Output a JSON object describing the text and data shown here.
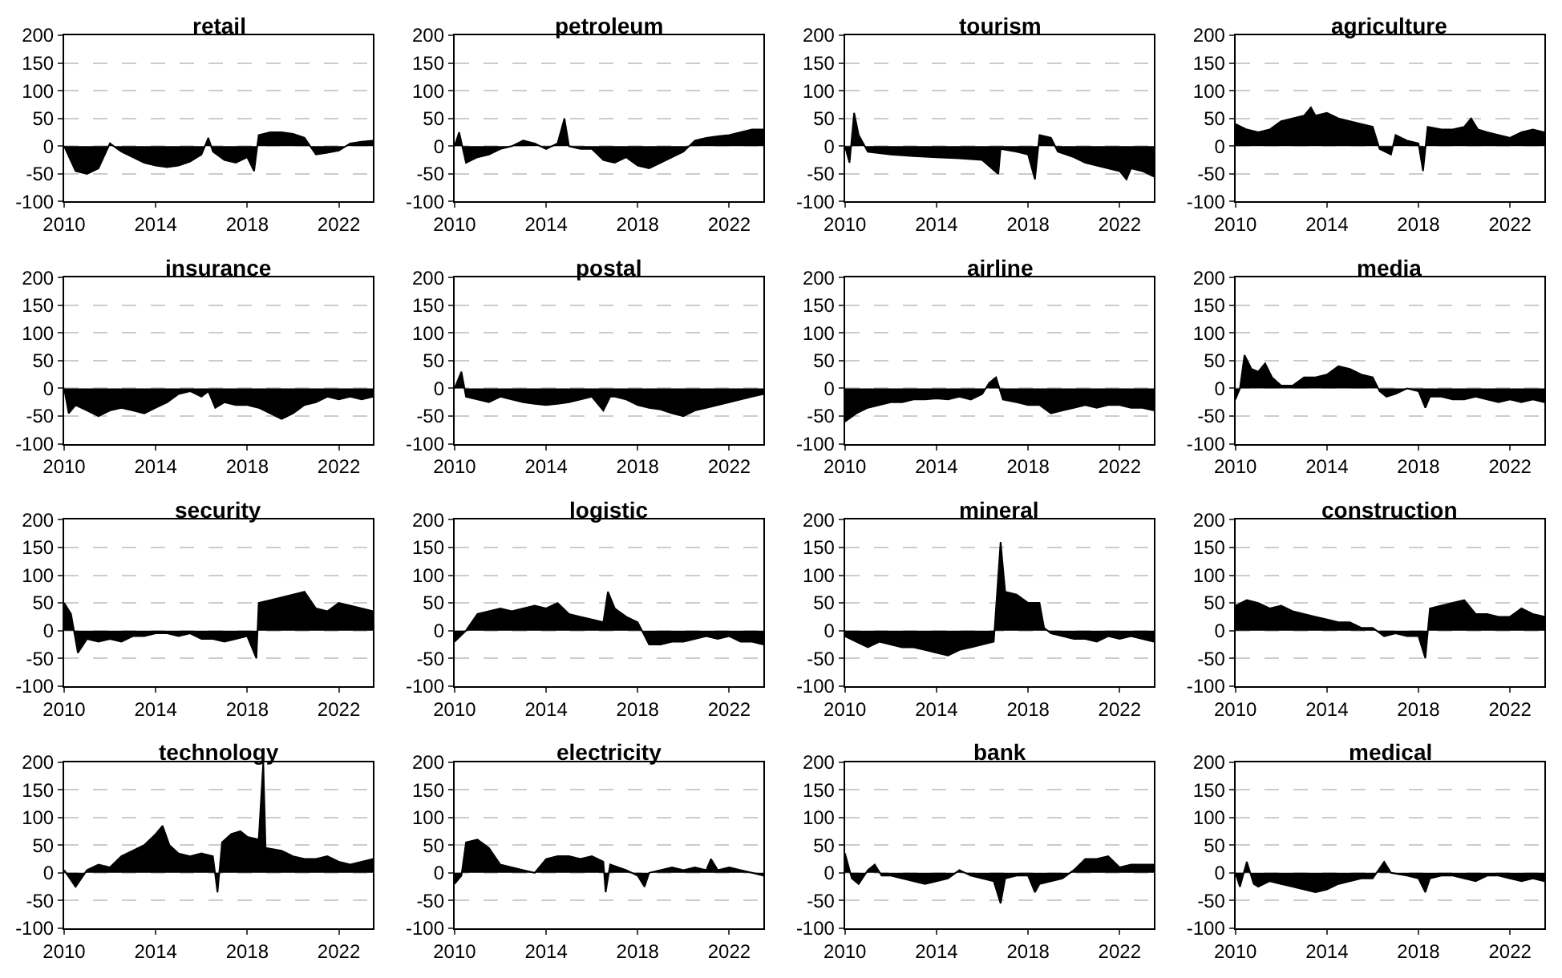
{
  "chart_data": [
    {
      "type": "area",
      "title": "retail",
      "color": "#000000",
      "xlim": [
        2010,
        2023.5
      ],
      "ylim": [
        -100,
        200
      ],
      "xticks": [
        2010,
        2014,
        2018,
        2022
      ],
      "yticks": [
        -100,
        -50,
        0,
        50,
        100,
        150,
        200
      ],
      "grid": "y",
      "x": [
        2010,
        2010.5,
        2011,
        2011.5,
        2012,
        2012.5,
        2013,
        2013.5,
        2014,
        2014.5,
        2015,
        2015.5,
        2016,
        2016.3,
        2016.5,
        2017,
        2017.5,
        2018,
        2018.3,
        2018.5,
        2019,
        2019.5,
        2020,
        2020.5,
        2021,
        2021.5,
        2022,
        2022.5,
        2023,
        2023.5
      ],
      "values": [
        0,
        -45,
        -50,
        -40,
        5,
        -10,
        -20,
        -30,
        -35,
        -38,
        -35,
        -28,
        -15,
        15,
        -10,
        -25,
        -30,
        -20,
        -45,
        20,
        25,
        25,
        22,
        15,
        -15,
        -12,
        -8,
        5,
        8,
        10
      ]
    },
    {
      "type": "area",
      "title": "petroleum",
      "color": "#000000",
      "xlim": [
        2010,
        2023.5
      ],
      "ylim": [
        -100,
        200
      ],
      "xticks": [
        2010,
        2014,
        2018,
        2022
      ],
      "yticks": [
        -100,
        -50,
        0,
        50,
        100,
        150,
        200
      ],
      "grid": "y",
      "x": [
        2010,
        2010.2,
        2010.5,
        2011,
        2011.5,
        2012,
        2012.5,
        2013,
        2013.5,
        2014,
        2014.5,
        2014.8,
        2015,
        2015.5,
        2016,
        2016.5,
        2017,
        2017.5,
        2018,
        2018.5,
        2019,
        2019.5,
        2020,
        2020.5,
        2021,
        2021.5,
        2022,
        2022.5,
        2023,
        2023.5
      ],
      "values": [
        0,
        25,
        -30,
        -20,
        -15,
        -5,
        0,
        10,
        5,
        -5,
        5,
        50,
        0,
        -5,
        -5,
        -25,
        -30,
        -20,
        -35,
        -40,
        -30,
        -20,
        -10,
        10,
        15,
        18,
        20,
        25,
        30,
        30
      ]
    },
    {
      "type": "area",
      "title": "tourism",
      "color": "#000000",
      "xlim": [
        2010,
        2023.5
      ],
      "ylim": [
        -100,
        200
      ],
      "xticks": [
        2010,
        2014,
        2018,
        2022
      ],
      "yticks": [
        -100,
        -50,
        0,
        50,
        100,
        150,
        200
      ],
      "grid": "y",
      "x": [
        2010,
        2010.2,
        2010.4,
        2010.6,
        2011,
        2012,
        2013,
        2014,
        2015,
        2016,
        2016.7,
        2016.8,
        2017.5,
        2018,
        2018.3,
        2018.5,
        2019,
        2019.3,
        2020,
        2020.5,
        2021,
        2021.5,
        2022,
        2022.3,
        2022.5,
        2023,
        2023.5
      ],
      "values": [
        0,
        -30,
        60,
        20,
        -10,
        -15,
        -18,
        -20,
        -22,
        -25,
        -50,
        -5,
        -10,
        -15,
        -60,
        20,
        15,
        -10,
        -20,
        -30,
        -35,
        -40,
        -45,
        -60,
        -40,
        -45,
        -55
      ]
    },
    {
      "type": "area",
      "title": "agriculture",
      "color": "#000000",
      "xlim": [
        2010,
        2023.5
      ],
      "ylim": [
        -100,
        200
      ],
      "xticks": [
        2010,
        2014,
        2018,
        2022
      ],
      "yticks": [
        -100,
        -50,
        0,
        50,
        100,
        150,
        200
      ],
      "grid": "y",
      "x": [
        2010,
        2010.5,
        2011,
        2011.5,
        2012,
        2012.5,
        2013,
        2013.3,
        2013.5,
        2014,
        2014.5,
        2015,
        2015.5,
        2016,
        2016.3,
        2016.8,
        2017,
        2017.5,
        2018,
        2018.2,
        2018.4,
        2019,
        2019.5,
        2020,
        2020.3,
        2020.6,
        2021,
        2021.5,
        2022,
        2022.5,
        2023,
        2023.5
      ],
      "values": [
        40,
        30,
        25,
        30,
        45,
        50,
        55,
        70,
        55,
        60,
        50,
        45,
        40,
        35,
        -5,
        -15,
        20,
        10,
        5,
        -45,
        35,
        30,
        30,
        35,
        50,
        30,
        25,
        20,
        15,
        25,
        30,
        25
      ]
    },
    {
      "type": "area",
      "title": "insurance",
      "color": "#000000",
      "xlim": [
        2010,
        2023.5
      ],
      "ylim": [
        -100,
        200
      ],
      "xticks": [
        2010,
        2014,
        2018,
        2022
      ],
      "yticks": [
        -100,
        -50,
        0,
        50,
        100,
        150,
        200
      ],
      "grid": "y",
      "x": [
        2010,
        2010.2,
        2010.5,
        2011,
        2011.5,
        2012,
        2012.5,
        2013,
        2013.5,
        2014,
        2014.5,
        2015,
        2015.5,
        2016,
        2016.3,
        2016.6,
        2017,
        2017.5,
        2018,
        2018.5,
        2019,
        2019.5,
        2020,
        2020.5,
        2021,
        2021.5,
        2022,
        2022.5,
        2023,
        2023.5
      ],
      "values": [
        0,
        -45,
        -30,
        -40,
        -50,
        -40,
        -35,
        -40,
        -45,
        -35,
        -25,
        -10,
        -5,
        -15,
        -5,
        -35,
        -25,
        -30,
        -30,
        -35,
        -45,
        -55,
        -45,
        -30,
        -25,
        -15,
        -20,
        -15,
        -20,
        -15
      ]
    },
    {
      "type": "area",
      "title": "postal",
      "color": "#000000",
      "xlim": [
        2010,
        2023.5
      ],
      "ylim": [
        -100,
        200
      ],
      "xticks": [
        2010,
        2014,
        2018,
        2022
      ],
      "yticks": [
        -100,
        -50,
        0,
        50,
        100,
        150,
        200
      ],
      "grid": "y",
      "x": [
        2010,
        2010.3,
        2010.5,
        2011,
        2011.5,
        2012,
        2012.5,
        2013,
        2013.5,
        2014,
        2014.5,
        2015,
        2015.5,
        2016,
        2016.5,
        2016.8,
        2017,
        2017.5,
        2018,
        2018.5,
        2019,
        2019.5,
        2020,
        2020.5,
        2021,
        2021.5,
        2022,
        2022.5,
        2023,
        2023.5
      ],
      "values": [
        0,
        30,
        -15,
        -20,
        -25,
        -15,
        -20,
        -25,
        -28,
        -30,
        -28,
        -25,
        -20,
        -15,
        -40,
        -15,
        -15,
        -20,
        -30,
        -35,
        -38,
        -45,
        -50,
        -40,
        -35,
        -30,
        -25,
        -20,
        -15,
        -10
      ]
    },
    {
      "type": "area",
      "title": "airline",
      "color": "#000000",
      "xlim": [
        2010,
        2023.5
      ],
      "ylim": [
        -100,
        200
      ],
      "xticks": [
        2010,
        2014,
        2018,
        2022
      ],
      "yticks": [
        -100,
        -50,
        0,
        50,
        100,
        150,
        200
      ],
      "grid": "y",
      "x": [
        2010,
        2010.5,
        2011,
        2011.5,
        2012,
        2012.5,
        2013,
        2013.5,
        2014,
        2014.5,
        2015,
        2015.5,
        2016,
        2016.3,
        2016.6,
        2016.9,
        2017.5,
        2018,
        2018.5,
        2019,
        2019.5,
        2020,
        2020.5,
        2021,
        2021.5,
        2022,
        2022.5,
        2023,
        2023.5
      ],
      "values": [
        -60,
        -45,
        -35,
        -30,
        -25,
        -25,
        -20,
        -20,
        -18,
        -20,
        -15,
        -20,
        -10,
        10,
        20,
        -20,
        -25,
        -30,
        -30,
        -45,
        -40,
        -35,
        -30,
        -35,
        -30,
        -30,
        -35,
        -35,
        -40
      ]
    },
    {
      "type": "area",
      "title": "media",
      "color": "#000000",
      "xlim": [
        2010,
        2023.5
      ],
      "ylim": [
        -100,
        200
      ],
      "xticks": [
        2010,
        2014,
        2018,
        2022
      ],
      "yticks": [
        -100,
        -50,
        0,
        50,
        100,
        150,
        200
      ],
      "grid": "y",
      "x": [
        2010,
        2010.2,
        2010.4,
        2010.7,
        2011,
        2011.3,
        2011.6,
        2012,
        2012.5,
        2013,
        2013.5,
        2014,
        2014.5,
        2015,
        2015.5,
        2016,
        2016.3,
        2016.6,
        2017,
        2017.5,
        2018,
        2018.3,
        2018.5,
        2019,
        2019.5,
        2020,
        2020.5,
        2021,
        2021.5,
        2022,
        2022.5,
        2023,
        2023.5
      ],
      "values": [
        -20,
        0,
        60,
        35,
        30,
        45,
        20,
        5,
        5,
        20,
        20,
        25,
        40,
        35,
        25,
        20,
        -5,
        -15,
        -10,
        0,
        -5,
        -35,
        -15,
        -15,
        -20,
        -20,
        -15,
        -20,
        -25,
        -20,
        -25,
        -20,
        -25
      ]
    },
    {
      "type": "area",
      "title": "security",
      "color": "#000000",
      "xlim": [
        2010,
        2023.5
      ],
      "ylim": [
        -100,
        200
      ],
      "xticks": [
        2010,
        2014,
        2018,
        2022
      ],
      "yticks": [
        -100,
        -50,
        0,
        50,
        100,
        150,
        200
      ],
      "grid": "y",
      "x": [
        2010,
        2010.3,
        2010.6,
        2011,
        2011.5,
        2012,
        2012.5,
        2013,
        2013.5,
        2014,
        2014.5,
        2015,
        2015.5,
        2016,
        2016.5,
        2017,
        2017.5,
        2018,
        2018.4,
        2018.5,
        2019,
        2019.5,
        2020,
        2020.5,
        2021,
        2021.5,
        2022,
        2022.5,
        2023,
        2023.5
      ],
      "values": [
        50,
        30,
        -40,
        -15,
        -20,
        -15,
        -20,
        -10,
        -10,
        -5,
        -5,
        -10,
        -5,
        -15,
        -15,
        -20,
        -15,
        -10,
        -50,
        50,
        55,
        60,
        65,
        70,
        40,
        35,
        50,
        45,
        40,
        35
      ]
    },
    {
      "type": "area",
      "title": "logistic",
      "color": "#000000",
      "xlim": [
        2010,
        2023.5
      ],
      "ylim": [
        -100,
        200
      ],
      "xticks": [
        2010,
        2014,
        2018,
        2022
      ],
      "yticks": [
        -100,
        -50,
        0,
        50,
        100,
        150,
        200
      ],
      "grid": "y",
      "x": [
        2010,
        2010.5,
        2011,
        2011.5,
        2012,
        2012.5,
        2013,
        2013.5,
        2014,
        2014.5,
        2015,
        2015.5,
        2016,
        2016.5,
        2016.7,
        2017,
        2017.5,
        2018,
        2018.5,
        2019,
        2019.5,
        2020,
        2020.5,
        2021,
        2021.5,
        2022,
        2022.5,
        2023,
        2023.5
      ],
      "values": [
        -20,
        0,
        30,
        35,
        40,
        35,
        40,
        45,
        40,
        50,
        30,
        25,
        20,
        15,
        70,
        40,
        25,
        15,
        -25,
        -25,
        -20,
        -20,
        -15,
        -10,
        -15,
        -10,
        -20,
        -20,
        -25
      ]
    },
    {
      "type": "area",
      "title": "mineral",
      "color": "#000000",
      "xlim": [
        2010,
        2023.5
      ],
      "ylim": [
        -100,
        200
      ],
      "xticks": [
        2010,
        2014,
        2018,
        2022
      ],
      "yticks": [
        -100,
        -50,
        0,
        50,
        100,
        150,
        200
      ],
      "grid": "y",
      "x": [
        2010,
        2010.5,
        2011,
        2011.5,
        2012,
        2012.5,
        2013,
        2013.5,
        2014,
        2014.5,
        2015,
        2015.5,
        2016,
        2016.5,
        2016.8,
        2017,
        2017.5,
        2018,
        2018.5,
        2018.7,
        2019,
        2019.5,
        2020,
        2020.5,
        2021,
        2021.5,
        2022,
        2022.5,
        2023,
        2023.5
      ],
      "values": [
        -10,
        -20,
        -30,
        -20,
        -25,
        -30,
        -30,
        -35,
        -40,
        -45,
        -35,
        -30,
        -25,
        -20,
        160,
        70,
        65,
        50,
        50,
        5,
        -5,
        -10,
        -15,
        -15,
        -20,
        -10,
        -15,
        -10,
        -15,
        -20
      ]
    },
    {
      "type": "area",
      "title": "construction",
      "color": "#000000",
      "xlim": [
        2010,
        2023.5
      ],
      "ylim": [
        -100,
        200
      ],
      "xticks": [
        2010,
        2014,
        2018,
        2022
      ],
      "yticks": [
        -100,
        -50,
        0,
        50,
        100,
        150,
        200
      ],
      "grid": "y",
      "x": [
        2010,
        2010.5,
        2011,
        2011.5,
        2012,
        2012.5,
        2013,
        2013.5,
        2014,
        2014.5,
        2015,
        2015.5,
        2016,
        2016.5,
        2017,
        2017.5,
        2018,
        2018.3,
        2018.5,
        2019,
        2019.5,
        2020,
        2020.5,
        2021,
        2021.5,
        2022,
        2022.5,
        2023,
        2023.5
      ],
      "values": [
        45,
        55,
        50,
        40,
        45,
        35,
        30,
        25,
        20,
        15,
        15,
        5,
        5,
        -10,
        -5,
        -10,
        -10,
        -50,
        40,
        45,
        50,
        55,
        30,
        30,
        25,
        25,
        40,
        30,
        25
      ]
    },
    {
      "type": "area",
      "title": "technology",
      "color": "#000000",
      "xlim": [
        2010,
        2023.5
      ],
      "ylim": [
        -100,
        200
      ],
      "xticks": [
        2010,
        2014,
        2018,
        2022
      ],
      "yticks": [
        -100,
        -50,
        0,
        50,
        100,
        150,
        200
      ],
      "grid": "y",
      "x": [
        2010,
        2010.5,
        2011,
        2011.5,
        2012,
        2012.5,
        2013,
        2013.5,
        2014,
        2014.3,
        2014.6,
        2015,
        2015.5,
        2016,
        2016.5,
        2016.7,
        2016.9,
        2017.3,
        2017.7,
        2018,
        2018.5,
        2018.7,
        2018.8,
        2019.5,
        2020,
        2020.5,
        2021,
        2021.5,
        2022,
        2022.5,
        2023,
        2023.5
      ],
      "values": [
        5,
        -25,
        5,
        15,
        10,
        30,
        40,
        50,
        70,
        85,
        50,
        35,
        30,
        35,
        30,
        -35,
        55,
        70,
        75,
        65,
        60,
        200,
        45,
        40,
        30,
        25,
        25,
        30,
        20,
        15,
        20,
        25
      ]
    },
    {
      "type": "area",
      "title": "electricity",
      "color": "#000000",
      "xlim": [
        2010,
        2023.5
      ],
      "ylim": [
        -100,
        200
      ],
      "xticks": [
        2010,
        2014,
        2018,
        2022
      ],
      "yticks": [
        -100,
        -50,
        0,
        50,
        100,
        150,
        200
      ],
      "grid": "y",
      "x": [
        2010,
        2010.3,
        2010.5,
        2011,
        2011.5,
        2012,
        2012.5,
        2013,
        2013.5,
        2014,
        2014.5,
        2015,
        2015.5,
        2016,
        2016.5,
        2016.6,
        2016.8,
        2017.5,
        2018,
        2018.3,
        2018.5,
        2019,
        2019.5,
        2020,
        2020.5,
        2021,
        2021.2,
        2021.5,
        2022,
        2022.5,
        2023,
        2023.5
      ],
      "values": [
        -20,
        -5,
        55,
        60,
        45,
        15,
        10,
        5,
        0,
        25,
        30,
        30,
        25,
        30,
        20,
        -35,
        15,
        5,
        -5,
        -25,
        0,
        5,
        10,
        5,
        10,
        5,
        25,
        5,
        10,
        5,
        0,
        -5
      ]
    },
    {
      "type": "area",
      "title": "bank",
      "color": "#000000",
      "xlim": [
        2010,
        2023.5
      ],
      "ylim": [
        -100,
        200
      ],
      "xticks": [
        2010,
        2014,
        2018,
        2022
      ],
      "yticks": [
        -100,
        -50,
        0,
        50,
        100,
        150,
        200
      ],
      "grid": "y",
      "x": [
        2010,
        2010.3,
        2010.6,
        2011,
        2011.3,
        2011.6,
        2012,
        2012.5,
        2013,
        2013.5,
        2014,
        2014.5,
        2015,
        2015.5,
        2016,
        2016.5,
        2016.8,
        2017,
        2017.5,
        2018,
        2018.3,
        2018.5,
        2019,
        2019.5,
        2020,
        2020.5,
        2021,
        2021.5,
        2022,
        2022.5,
        2023,
        2023.5
      ],
      "values": [
        35,
        -10,
        -20,
        5,
        15,
        -5,
        -5,
        -10,
        -15,
        -20,
        -15,
        -10,
        5,
        -5,
        -10,
        -15,
        -55,
        -10,
        -5,
        -5,
        -35,
        -20,
        -15,
        -10,
        5,
        25,
        25,
        30,
        10,
        15,
        15,
        15
      ]
    },
    {
      "type": "area",
      "title": "medical",
      "color": "#000000",
      "xlim": [
        2010,
        2023.5
      ],
      "ylim": [
        -100,
        200
      ],
      "xticks": [
        2010,
        2014,
        2018,
        2022
      ],
      "yticks": [
        -100,
        -50,
        0,
        50,
        100,
        150,
        200
      ],
      "grid": "y",
      "x": [
        2010,
        2010.2,
        2010.5,
        2010.8,
        2011,
        2011.5,
        2012,
        2012.5,
        2013,
        2013.5,
        2014,
        2014.5,
        2015,
        2015.5,
        2016,
        2016.5,
        2016.8,
        2017.5,
        2018,
        2018.3,
        2018.5,
        2019,
        2019.5,
        2020,
        2020.5,
        2021,
        2021.5,
        2022,
        2022.5,
        2023,
        2023.5
      ],
      "values": [
        0,
        -25,
        20,
        -20,
        -25,
        -15,
        -20,
        -25,
        -30,
        -35,
        -30,
        -20,
        -15,
        -10,
        -10,
        20,
        0,
        -5,
        -10,
        -35,
        -10,
        -5,
        -5,
        -10,
        -15,
        -5,
        -5,
        -10,
        -15,
        -10,
        -15
      ]
    }
  ]
}
